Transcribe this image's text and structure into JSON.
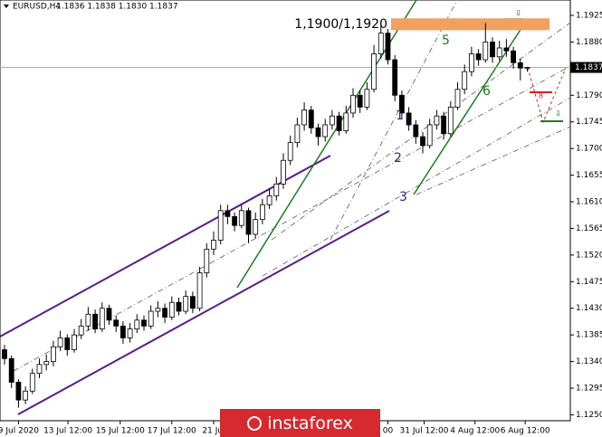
{
  "header": {
    "symbol": "EURUSD,H4",
    "ohlc": "1.1836 1.1838 1.1830 1.1837"
  },
  "watermark": "instaforex",
  "chart_data": {
    "type": "candlestick",
    "open": [
      1.136,
      1.1345,
      1.1305,
      1.1275,
      1.129,
      1.132,
      1.1335,
      1.134,
      1.1365,
      1.138,
      1.136,
      1.1385,
      1.14,
      1.142,
      1.1395,
      1.143,
      1.141,
      1.14,
      1.138,
      1.1395,
      1.141,
      1.14,
      1.1425,
      1.143,
      1.1415,
      1.144,
      1.1425,
      1.145,
      1.143,
      1.149,
      1.153,
      1.1545,
      1.1595,
      1.1585,
      1.157,
      1.1595,
      1.1555,
      1.158,
      1.1605,
      1.162,
      1.164,
      1.168,
      1.171,
      1.174,
      1.1765,
      1.1735,
      1.172,
      1.174,
      1.1755,
      1.173,
      1.176,
      1.179,
      1.177,
      1.18,
      1.186,
      1.1895,
      1.185,
      1.179,
      1.176,
      1.174,
      1.172,
      1.1705,
      1.174,
      1.1755,
      1.1725,
      1.177,
      1.18,
      1.183,
      1.186,
      1.185,
      1.188,
      1.1855,
      1.187,
      1.1865,
      1.1845,
      1.1836
    ],
    "high": [
      1.1368,
      1.135,
      1.131,
      1.1298,
      1.1328,
      1.1345,
      1.1352,
      1.1375,
      1.1392,
      1.1386,
      1.1395,
      1.1412,
      1.1432,
      1.1428,
      1.144,
      1.1436,
      1.1418,
      1.1408,
      1.1405,
      1.142,
      1.1418,
      1.1435,
      1.1442,
      1.1438,
      1.145,
      1.1448,
      1.146,
      1.1458,
      1.15,
      1.154,
      1.156,
      1.1605,
      1.1605,
      1.1592,
      1.1605,
      1.16,
      1.1592,
      1.1615,
      1.1632,
      1.1652,
      1.1692,
      1.1722,
      1.1752,
      1.1778,
      1.1772,
      1.1742,
      1.175,
      1.1765,
      1.1762,
      1.1772,
      1.1802,
      1.1798,
      1.1812,
      1.1875,
      1.191,
      1.1902,
      1.1858,
      1.1798,
      1.177,
      1.1748,
      1.1728,
      1.175,
      1.1765,
      1.1762,
      1.178,
      1.1812,
      1.1842,
      1.1872,
      1.1868,
      1.1912,
      1.1888,
      1.1882,
      1.1885,
      1.1872,
      1.1852,
      1.1838
    ],
    "low": [
      1.1335,
      1.1295,
      1.1262,
      1.1268,
      1.1285,
      1.1312,
      1.1325,
      1.1332,
      1.1358,
      1.135,
      1.1355,
      1.1378,
      1.1392,
      1.1388,
      1.139,
      1.1402,
      1.139,
      1.137,
      1.1372,
      1.1388,
      1.1392,
      1.1395,
      1.1415,
      1.1405,
      1.141,
      1.1418,
      1.142,
      1.1422,
      1.1425,
      1.1482,
      1.152,
      1.1538,
      1.1572,
      1.156,
      1.1565,
      1.154,
      1.1548,
      1.1572,
      1.1598,
      1.1612,
      1.1632,
      1.1672,
      1.1702,
      1.173,
      1.1725,
      1.1705,
      1.1712,
      1.1732,
      1.1722,
      1.1725,
      1.1752,
      1.176,
      1.1765,
      1.1795,
      1.1852,
      1.1842,
      1.178,
      1.175,
      1.173,
      1.1708,
      1.1692,
      1.17,
      1.1732,
      1.1715,
      1.172,
      1.1765,
      1.1792,
      1.1822,
      1.184,
      1.1845,
      1.1845,
      1.1848,
      1.1855,
      1.1835,
      1.1815,
      1.183
    ],
    "close": [
      1.1345,
      1.1305,
      1.1275,
      1.129,
      1.132,
      1.1335,
      1.134,
      1.1365,
      1.138,
      1.136,
      1.1385,
      1.14,
      1.142,
      1.1395,
      1.143,
      1.141,
      1.14,
      1.138,
      1.1395,
      1.141,
      1.14,
      1.1425,
      1.143,
      1.1415,
      1.144,
      1.1425,
      1.145,
      1.143,
      1.149,
      1.153,
      1.1545,
      1.1595,
      1.1585,
      1.157,
      1.1595,
      1.1555,
      1.158,
      1.1605,
      1.162,
      1.164,
      1.168,
      1.171,
      1.174,
      1.1765,
      1.1735,
      1.172,
      1.174,
      1.1755,
      1.173,
      1.176,
      1.179,
      1.177,
      1.18,
      1.186,
      1.1895,
      1.185,
      1.179,
      1.176,
      1.174,
      1.172,
      1.1705,
      1.174,
      1.1755,
      1.1725,
      1.177,
      1.18,
      1.183,
      1.186,
      1.185,
      1.188,
      1.1855,
      1.187,
      1.1865,
      1.1845,
      1.1836,
      1.1837
    ],
    "xlim": [
      -0.65,
      81.17
    ],
    "ylim": [
      1.124,
      1.1951
    ],
    "xticks": [
      {
        "value": 2,
        "label": "9 Jul 2020"
      },
      {
        "value": 9.1,
        "label": "13 Jul 12:00"
      },
      {
        "value": 16.6,
        "label": "15 Jul 12:00"
      },
      {
        "value": 24,
        "label": "17 Jul 12:00"
      },
      {
        "value": 30,
        "label": "21 Jul"
      },
      {
        "value": 55,
        "label": "00"
      },
      {
        "value": 60.2,
        "label": "31 Jul 12:00"
      },
      {
        "value": 67.5,
        "label": "4 Aug 12:00"
      },
      {
        "value": 74.7,
        "label": "6 Aug 12:00"
      }
    ],
    "yticks": [
      {
        "value": 1.1925,
        "label": "1.1925"
      },
      {
        "value": 1.188,
        "label": "1.1880"
      },
      {
        "value": 1.1835,
        "label": "1.1835"
      },
      {
        "value": 1.179,
        "label": "1.1790"
      },
      {
        "value": 1.1745,
        "label": "1.1745"
      },
      {
        "value": 1.17,
        "label": "1.1700"
      },
      {
        "value": 1.1655,
        "label": "1.1655"
      },
      {
        "value": 1.161,
        "label": "1.1610"
      },
      {
        "value": 1.1565,
        "label": "1.1565"
      },
      {
        "value": 1.152,
        "label": "1.1520"
      },
      {
        "value": 1.1475,
        "label": "1.1475"
      },
      {
        "value": 1.143,
        "label": "1.1430"
      },
      {
        "value": 1.1385,
        "label": "1.1385"
      },
      {
        "value": 1.134,
        "label": "1.1340"
      },
      {
        "value": 1.1295,
        "label": "1.1295"
      },
      {
        "value": 1.125,
        "label": "1.1250"
      }
    ],
    "current_price": {
      "value": 1.1837,
      "label": "1.1837"
    },
    "zone": {
      "values": [
        1.19,
        1.192
      ],
      "label": "1,1900/1,1920",
      "color": "#f0a060"
    },
    "labels": [
      "1",
      "2",
      "3",
      "5",
      "6",
      "8"
    ],
    "bull_color": "#ffffff",
    "bear_color": "#000000"
  }
}
